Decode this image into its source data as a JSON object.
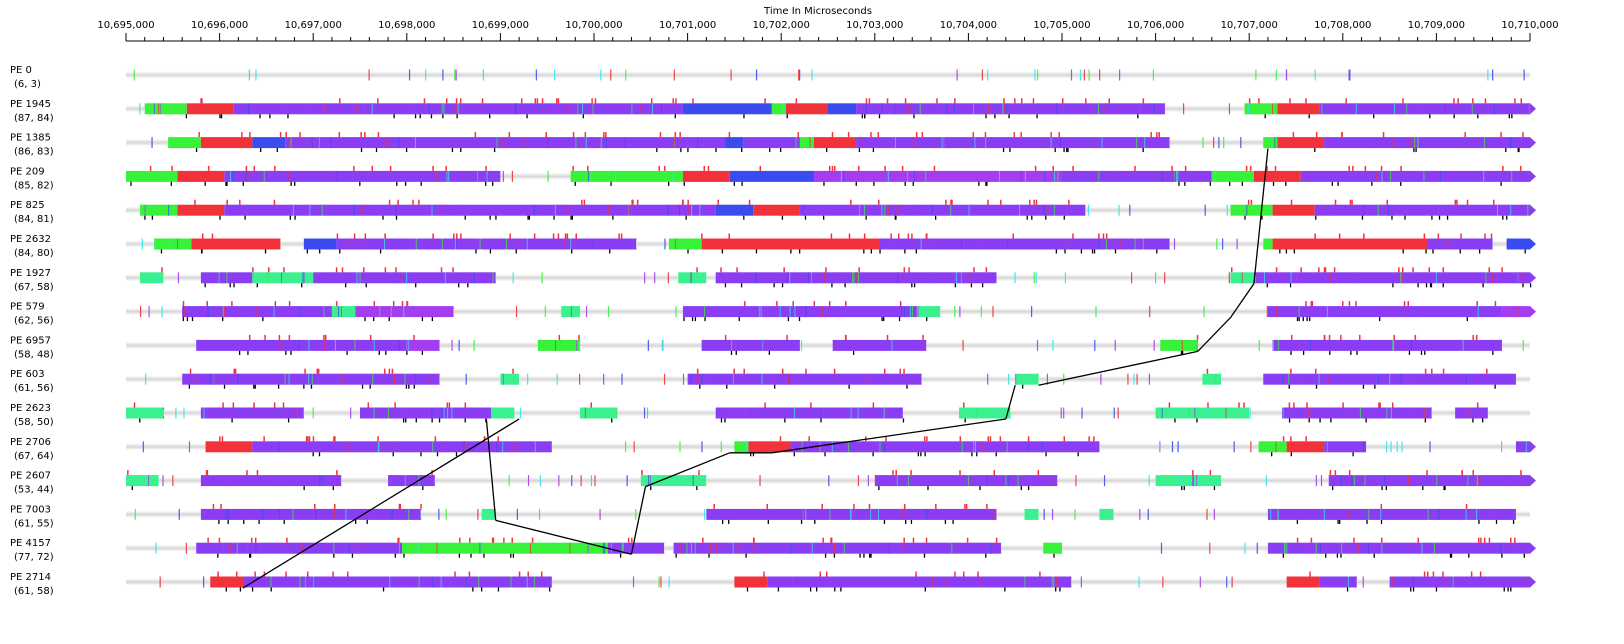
{
  "axis": {
    "title": "Time In Microseconds",
    "start": 10695000,
    "end": 10710000,
    "major_step": 1000,
    "minor_step": 200,
    "tick_labels": [
      "10,695,000",
      "10,696,000",
      "10,697,000",
      "10,698,000",
      "10,699,000",
      "10,700,000",
      "10,701,000",
      "10,702,000",
      "10,703,000",
      "10,704,000",
      "10,705,000",
      "10,706,000",
      "10,707,000",
      "10,708,000",
      "10,709,000",
      "10,710,000"
    ]
  },
  "colors": {
    "idle": "#e2e2e2",
    "purple": "#8a3df2",
    "violet": "#a43cf0",
    "blue": "#3a4cf0",
    "red": "#f2323a",
    "green": "#38f23a",
    "mint": "#3bf08e",
    "cyan": "#2ee8e8",
    "message_line": "#000000"
  },
  "processors": [
    {
      "name": "PE 0",
      "stats": "(6, 3)",
      "tracks": [
        [
          10695000,
          10710000,
          "idle"
        ]
      ]
    },
    {
      "name": "PE 1945",
      "stats": "(87, 84)",
      "tracks": [
        [
          10695000,
          10695200,
          "idle"
        ],
        [
          10695200,
          10695650,
          "green"
        ],
        [
          10695650,
          10696150,
          "red"
        ],
        [
          10696150,
          10700950,
          "purple"
        ],
        [
          10700950,
          10701900,
          "blue"
        ],
        [
          10701900,
          10702050,
          "green"
        ],
        [
          10702050,
          10702500,
          "red"
        ],
        [
          10702500,
          10702800,
          "blue"
        ],
        [
          10702800,
          10706100,
          "purple"
        ],
        [
          10706100,
          10706950,
          "idle"
        ],
        [
          10706950,
          10707300,
          "green"
        ],
        [
          10707300,
          10707750,
          "red"
        ],
        [
          10707750,
          10710000,
          "purple"
        ]
      ]
    },
    {
      "name": "PE 1385",
      "stats": "(86, 83)",
      "tracks": [
        [
          10695000,
          10695450,
          "idle"
        ],
        [
          10695450,
          10695800,
          "green"
        ],
        [
          10695800,
          10696350,
          "red"
        ],
        [
          10696350,
          10696700,
          "blue"
        ],
        [
          10696700,
          10701400,
          "purple"
        ],
        [
          10701400,
          10701600,
          "blue"
        ],
        [
          10701600,
          10702200,
          "purple"
        ],
        [
          10702200,
          10702350,
          "green"
        ],
        [
          10702350,
          10702800,
          "red"
        ],
        [
          10702800,
          10706150,
          "purple"
        ],
        [
          10706150,
          10707150,
          "idle"
        ],
        [
          10707150,
          10707300,
          "green"
        ],
        [
          10707300,
          10707800,
          "red"
        ],
        [
          10707800,
          10710000,
          "purple"
        ]
      ]
    },
    {
      "name": "PE 209",
      "stats": "(85, 82)",
      "tracks": [
        [
          10695000,
          10695550,
          "green"
        ],
        [
          10695550,
          10696050,
          "red"
        ],
        [
          10696050,
          10699000,
          "purple"
        ],
        [
          10699000,
          10699750,
          "idle"
        ],
        [
          10699750,
          10700950,
          "green"
        ],
        [
          10700950,
          10701450,
          "red"
        ],
        [
          10701450,
          10702350,
          "blue"
        ],
        [
          10702350,
          10705000,
          "violet"
        ],
        [
          10705000,
          10706600,
          "purple"
        ],
        [
          10706600,
          10707050,
          "green"
        ],
        [
          10707050,
          10707550,
          "red"
        ],
        [
          10707550,
          10710000,
          "purple"
        ]
      ]
    },
    {
      "name": "PE 825",
      "stats": "(84, 81)",
      "tracks": [
        [
          10695000,
          10695150,
          "idle"
        ],
        [
          10695150,
          10695550,
          "green"
        ],
        [
          10695550,
          10696050,
          "red"
        ],
        [
          10696050,
          10701300,
          "purple"
        ],
        [
          10701300,
          10701700,
          "blue"
        ],
        [
          10701700,
          10702200,
          "red"
        ],
        [
          10702200,
          10705250,
          "purple"
        ],
        [
          10705250,
          10706800,
          "idle"
        ],
        [
          10706800,
          10707250,
          "green"
        ],
        [
          10707250,
          10707700,
          "red"
        ],
        [
          10707700,
          10710000,
          "purple"
        ]
      ]
    },
    {
      "name": "PE 2632",
      "stats": "(84, 80)",
      "tracks": [
        [
          10695000,
          10695300,
          "idle"
        ],
        [
          10695300,
          10695700,
          "green"
        ],
        [
          10695700,
          10696650,
          "red"
        ],
        [
          10696650,
          10696900,
          "idle"
        ],
        [
          10696900,
          10697250,
          "blue"
        ],
        [
          10697250,
          10700450,
          "purple"
        ],
        [
          10700450,
          10700800,
          "idle"
        ],
        [
          10700800,
          10701150,
          "green"
        ],
        [
          10701150,
          10703050,
          "red"
        ],
        [
          10703050,
          10706150,
          "purple"
        ],
        [
          10706150,
          10707150,
          "idle"
        ],
        [
          10707150,
          10707250,
          "green"
        ],
        [
          10707250,
          10708900,
          "red"
        ],
        [
          10708900,
          10709600,
          "purple"
        ],
        [
          10709600,
          10709750,
          "idle"
        ],
        [
          10709750,
          10710000,
          "blue"
        ]
      ]
    },
    {
      "name": "PE 1927",
      "stats": "(67, 58)",
      "tracks": [
        [
          10695000,
          10695150,
          "idle"
        ],
        [
          10695150,
          10695400,
          "mint"
        ],
        [
          10695400,
          10695800,
          "idle"
        ],
        [
          10695800,
          10696350,
          "purple"
        ],
        [
          10696350,
          10697000,
          "mint"
        ],
        [
          10697000,
          10698950,
          "purple"
        ],
        [
          10698950,
          10700900,
          "idle"
        ],
        [
          10700900,
          10701200,
          "mint"
        ],
        [
          10701200,
          10701300,
          "idle"
        ],
        [
          10701300,
          10704300,
          "purple"
        ],
        [
          10704300,
          10706800,
          "idle"
        ],
        [
          10706800,
          10707050,
          "mint"
        ],
        [
          10707050,
          10710000,
          "purple"
        ]
      ]
    },
    {
      "name": "PE 579",
      "stats": "(62, 56)",
      "tracks": [
        [
          10695000,
          10695600,
          "idle"
        ],
        [
          10695600,
          10697200,
          "purple"
        ],
        [
          10697200,
          10697450,
          "mint"
        ],
        [
          10697450,
          10698500,
          "violet"
        ],
        [
          10698500,
          10699650,
          "idle"
        ],
        [
          10699650,
          10699850,
          "mint"
        ],
        [
          10699850,
          10700950,
          "idle"
        ],
        [
          10700950,
          10703450,
          "purple"
        ],
        [
          10703450,
          10703700,
          "mint"
        ],
        [
          10703700,
          10707200,
          "idle"
        ],
        [
          10707200,
          10709700,
          "purple"
        ],
        [
          10709700,
          10710000,
          "violet"
        ]
      ]
    },
    {
      "name": "PE 6957",
      "stats": "(58, 48)",
      "tracks": [
        [
          10695000,
          10695750,
          "idle"
        ],
        [
          10695750,
          10698000,
          "purple"
        ],
        [
          10698000,
          10698350,
          "violet"
        ],
        [
          10698350,
          10699400,
          "idle"
        ],
        [
          10699400,
          10699850,
          "green"
        ],
        [
          10699850,
          10701150,
          "idle"
        ],
        [
          10701150,
          10702200,
          "purple"
        ],
        [
          10702200,
          10702550,
          "idle"
        ],
        [
          10702550,
          10703550,
          "purple"
        ],
        [
          10703550,
          10706050,
          "idle"
        ],
        [
          10706050,
          10706450,
          "green"
        ],
        [
          10706450,
          10707250,
          "idle"
        ],
        [
          10707250,
          10709700,
          "purple"
        ],
        [
          10709700,
          10710000,
          "idle"
        ]
      ]
    },
    {
      "name": "PE 603",
      "stats": "(61, 56)",
      "tracks": [
        [
          10695000,
          10695600,
          "idle"
        ],
        [
          10695600,
          10698350,
          "purple"
        ],
        [
          10698350,
          10699000,
          "idle"
        ],
        [
          10699000,
          10699200,
          "mint"
        ],
        [
          10699200,
          10701000,
          "idle"
        ],
        [
          10701000,
          10703500,
          "purple"
        ],
        [
          10703500,
          10704500,
          "idle"
        ],
        [
          10704500,
          10704750,
          "mint"
        ],
        [
          10704750,
          10706500,
          "idle"
        ],
        [
          10706500,
          10706700,
          "mint"
        ],
        [
          10706700,
          10707150,
          "idle"
        ],
        [
          10707150,
          10709850,
          "purple"
        ],
        [
          10709850,
          10710000,
          "idle"
        ]
      ]
    },
    {
      "name": "PE 2623",
      "stats": "(58, 50)",
      "tracks": [
        [
          10695000,
          10695400,
          "mint"
        ],
        [
          10695400,
          10695800,
          "idle"
        ],
        [
          10695800,
          10696900,
          "purple"
        ],
        [
          10696900,
          10697500,
          "idle"
        ],
        [
          10697500,
          10698900,
          "purple"
        ],
        [
          10698900,
          10699150,
          "mint"
        ],
        [
          10699150,
          10699850,
          "idle"
        ],
        [
          10699850,
          10700250,
          "mint"
        ],
        [
          10700250,
          10701300,
          "idle"
        ],
        [
          10701300,
          10703300,
          "purple"
        ],
        [
          10703300,
          10703900,
          "idle"
        ],
        [
          10703900,
          10704450,
          "mint"
        ],
        [
          10704450,
          10706000,
          "idle"
        ],
        [
          10706000,
          10707000,
          "mint"
        ],
        [
          10707000,
          10707350,
          "idle"
        ],
        [
          10707350,
          10708950,
          "purple"
        ],
        [
          10708950,
          10709200,
          "idle"
        ],
        [
          10709200,
          10709550,
          "purple"
        ],
        [
          10709550,
          10710000,
          "idle"
        ]
      ]
    },
    {
      "name": "PE 2706",
      "stats": "(67, 64)",
      "tracks": [
        [
          10695000,
          10695850,
          "idle"
        ],
        [
          10695850,
          10696350,
          "red"
        ],
        [
          10696350,
          10699550,
          "purple"
        ],
        [
          10699550,
          10701500,
          "idle"
        ],
        [
          10701500,
          10701650,
          "green"
        ],
        [
          10701650,
          10702100,
          "red"
        ],
        [
          10702100,
          10705400,
          "purple"
        ],
        [
          10705400,
          10707100,
          "idle"
        ],
        [
          10707100,
          10707400,
          "green"
        ],
        [
          10707400,
          10707800,
          "red"
        ],
        [
          10707800,
          10708250,
          "purple"
        ],
        [
          10708250,
          10709850,
          "idle"
        ],
        [
          10709850,
          10710000,
          "purple"
        ]
      ]
    },
    {
      "name": "PE 2607",
      "stats": "(53, 44)",
      "tracks": [
        [
          10695000,
          10695350,
          "mint"
        ],
        [
          10695350,
          10695800,
          "idle"
        ],
        [
          10695800,
          10697300,
          "purple"
        ],
        [
          10697300,
          10697800,
          "idle"
        ],
        [
          10697800,
          10698300,
          "purple"
        ],
        [
          10698300,
          10700500,
          "idle"
        ],
        [
          10700500,
          10701200,
          "mint"
        ],
        [
          10701200,
          10703000,
          "idle"
        ],
        [
          10703000,
          10704950,
          "purple"
        ],
        [
          10704950,
          10706000,
          "idle"
        ],
        [
          10706000,
          10706700,
          "mint"
        ],
        [
          10706700,
          10707850,
          "idle"
        ],
        [
          10707850,
          10710000,
          "purple"
        ]
      ]
    },
    {
      "name": "PE 7003",
      "stats": "(61, 55)",
      "tracks": [
        [
          10695000,
          10695800,
          "idle"
        ],
        [
          10695800,
          10698150,
          "purple"
        ],
        [
          10698150,
          10698800,
          "idle"
        ],
        [
          10698800,
          10698950,
          "mint"
        ],
        [
          10698950,
          10701200,
          "idle"
        ],
        [
          10701200,
          10704300,
          "purple"
        ],
        [
          10704300,
          10704600,
          "idle"
        ],
        [
          10704600,
          10704750,
          "mint"
        ],
        [
          10704750,
          10705400,
          "idle"
        ],
        [
          10705400,
          10705550,
          "mint"
        ],
        [
          10705550,
          10707200,
          "idle"
        ],
        [
          10707200,
          10709850,
          "purple"
        ],
        [
          10709850,
          10710000,
          "idle"
        ]
      ]
    },
    {
      "name": "PE 4157",
      "stats": "(77, 72)",
      "tracks": [
        [
          10695000,
          10695750,
          "idle"
        ],
        [
          10695750,
          10697950,
          "purple"
        ],
        [
          10697950,
          10700150,
          "green"
        ],
        [
          10700150,
          10700750,
          "purple"
        ],
        [
          10700750,
          10700850,
          "idle"
        ],
        [
          10700850,
          10704350,
          "purple"
        ],
        [
          10704350,
          10704800,
          "idle"
        ],
        [
          10704800,
          10705000,
          "green"
        ],
        [
          10705000,
          10707200,
          "idle"
        ],
        [
          10707200,
          10710000,
          "purple"
        ]
      ]
    },
    {
      "name": "PE 2714",
      "stats": "(61, 58)",
      "tracks": [
        [
          10695000,
          10695900,
          "idle"
        ],
        [
          10695900,
          10696250,
          "red"
        ],
        [
          10696250,
          10699550,
          "purple"
        ],
        [
          10699550,
          10701500,
          "idle"
        ],
        [
          10701500,
          10701850,
          "red"
        ],
        [
          10701850,
          10705100,
          "purple"
        ],
        [
          10705100,
          10707400,
          "idle"
        ],
        [
          10707400,
          10707750,
          "red"
        ],
        [
          10707750,
          10708150,
          "purple"
        ],
        [
          10708150,
          10708500,
          "idle"
        ],
        [
          10708500,
          10710000,
          "purple"
        ]
      ]
    }
  ],
  "messages": [
    [
      10699200,
      10,
      10696250,
      15
    ],
    [
      10698850,
      10,
      10698950,
      13
    ],
    [
      10698950,
      13,
      10700400,
      14
    ],
    [
      10700400,
      14,
      10700550,
      12
    ],
    [
      10700550,
      12,
      10701450,
      11
    ],
    [
      10701450,
      11,
      10701900,
      11
    ],
    [
      10701900,
      11,
      10704400,
      10
    ],
    [
      10704400,
      10,
      10704500,
      9
    ],
    [
      10704750,
      9,
      10706450,
      8
    ],
    [
      10706450,
      8,
      10706800,
      7
    ],
    [
      10706800,
      7,
      10707050,
      6
    ],
    [
      10707050,
      6,
      10707200,
      2
    ]
  ]
}
